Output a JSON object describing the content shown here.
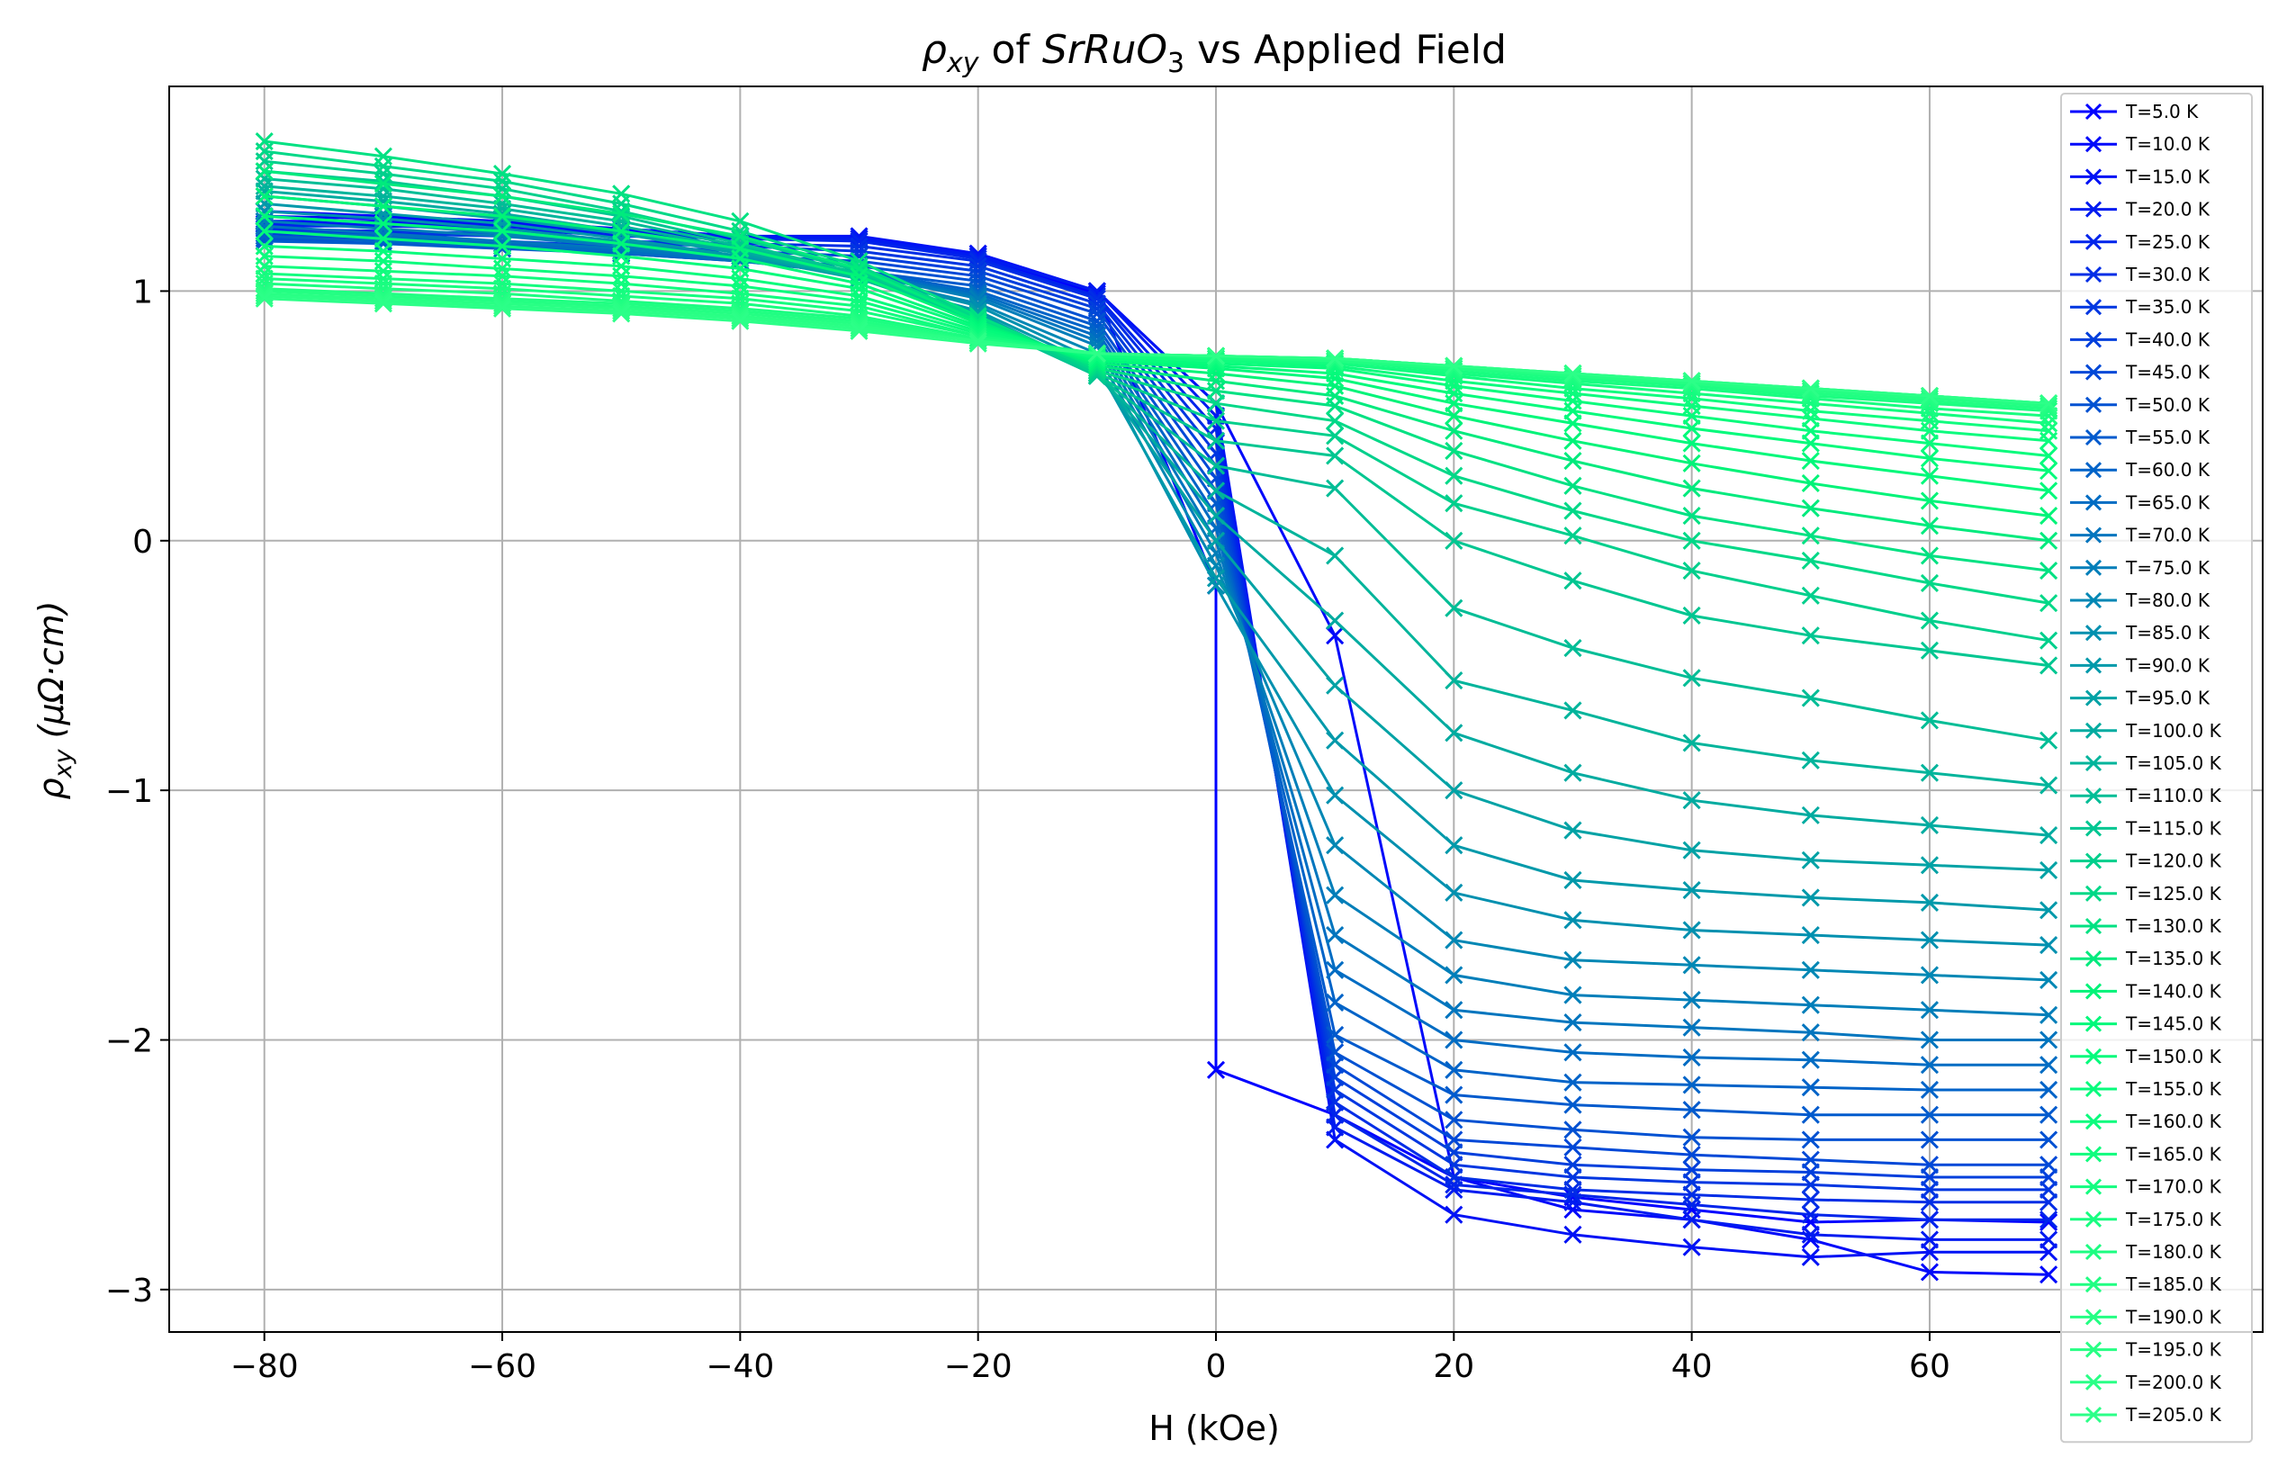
{
  "chart_data": {
    "type": "line",
    "title_parts": {
      "rho": "ρ",
      "rho_sub": "xy",
      "mid": " of ",
      "compound": "SrRuO",
      "compound_sub": "3",
      "tail": " vs Applied Field"
    },
    "xlabel": "H (kOe)",
    "ylabel_parts": {
      "rho": "ρ",
      "rho_sub": "xy",
      "units": " (μΩ·cm)"
    },
    "xlim": [
      -88,
      88
    ],
    "ylim": [
      -3.17,
      1.82
    ],
    "xticks": [
      -80,
      -60,
      -40,
      -20,
      0,
      20,
      40,
      60
    ],
    "yticks": [
      -3,
      -2,
      -1,
      0,
      1
    ],
    "grid": true,
    "legend_position": "right",
    "marker": "x",
    "x": [
      -80,
      -70,
      -60,
      -50,
      -40,
      -30,
      -20,
      -10,
      0,
      10,
      20,
      30,
      40,
      50,
      60,
      70
    ],
    "series": [
      {
        "name": "T=5.0 K",
        "color": "#0000ff",
        "values": [
          1.32,
          1.3,
          1.28,
          1.25,
          1.22,
          1.2,
          1.14,
          0.99,
          -2.12,
          -2.3,
          -2.55,
          -2.63,
          -2.68,
          -2.73,
          -2.72,
          -2.73
        ],
        "extra": [
          0,
          -0.18
        ]
      },
      {
        "name": "T=10.0 K",
        "color": "#0009fa",
        "values": [
          1.3,
          1.29,
          1.27,
          1.25,
          1.22,
          1.21,
          1.15,
          1.0,
          0.55,
          -0.38,
          -2.55,
          -2.68,
          -2.72,
          -2.8,
          -2.93,
          -2.94
        ]
      },
      {
        "name": "T=15.0 K",
        "color": "#0012f5",
        "values": [
          1.28,
          1.28,
          1.27,
          1.24,
          1.22,
          1.22,
          1.15,
          1.0,
          0.55,
          -2.4,
          -2.7,
          -2.78,
          -2.83,
          -2.87,
          -2.85,
          -2.85
        ]
      },
      {
        "name": "T=20.0 K",
        "color": "#001bf0",
        "values": [
          1.27,
          1.27,
          1.26,
          1.23,
          1.22,
          1.21,
          1.14,
          1.0,
          0.5,
          -2.35,
          -2.6,
          -2.65,
          -2.72,
          -2.78,
          -2.8,
          -2.8
        ]
      },
      {
        "name": "T=25.0 K",
        "color": "#0024eb",
        "values": [
          1.26,
          1.26,
          1.25,
          1.22,
          1.21,
          1.2,
          1.13,
          0.98,
          0.45,
          -2.3,
          -2.58,
          -2.62,
          -2.66,
          -2.7,
          -2.72,
          -2.72
        ]
      },
      {
        "name": "T=30.0 K",
        "color": "#002de6",
        "values": [
          1.25,
          1.24,
          1.23,
          1.2,
          1.19,
          1.18,
          1.12,
          0.97,
          0.4,
          -2.25,
          -2.55,
          -2.6,
          -2.62,
          -2.64,
          -2.65,
          -2.65
        ]
      },
      {
        "name": "T=35.0 K",
        "color": "#0036e1",
        "values": [
          1.24,
          1.23,
          1.22,
          1.19,
          1.18,
          1.16,
          1.1,
          0.95,
          0.35,
          -2.2,
          -2.5,
          -2.55,
          -2.57,
          -2.58,
          -2.6,
          -2.6
        ]
      },
      {
        "name": "T=40.0 K",
        "color": "#003fdc",
        "values": [
          1.23,
          1.22,
          1.2,
          1.18,
          1.16,
          1.14,
          1.08,
          0.93,
          0.3,
          -2.15,
          -2.45,
          -2.5,
          -2.52,
          -2.53,
          -2.55,
          -2.55
        ]
      },
      {
        "name": "T=45.0 K",
        "color": "#0048d7",
        "values": [
          1.22,
          1.21,
          1.19,
          1.17,
          1.14,
          1.12,
          1.06,
          0.91,
          0.25,
          -2.1,
          -2.4,
          -2.43,
          -2.46,
          -2.48,
          -2.5,
          -2.5
        ]
      },
      {
        "name": "T=50.0 K",
        "color": "#0051d2",
        "values": [
          1.21,
          1.2,
          1.18,
          1.16,
          1.13,
          1.1,
          1.04,
          0.88,
          0.2,
          -2.05,
          -2.32,
          -2.36,
          -2.39,
          -2.4,
          -2.4,
          -2.4
        ]
      },
      {
        "name": "T=55.0 K",
        "color": "#005acd",
        "values": [
          1.2,
          1.19,
          1.17,
          1.15,
          1.12,
          1.08,
          1.02,
          0.86,
          0.15,
          -1.98,
          -2.22,
          -2.26,
          -2.28,
          -2.3,
          -2.3,
          -2.3
        ]
      },
      {
        "name": "T=60.0 K",
        "color": "#0063c8",
        "values": [
          1.22,
          1.2,
          1.18,
          1.15,
          1.12,
          1.08,
          1.0,
          0.84,
          0.1,
          -1.85,
          -2.12,
          -2.17,
          -2.18,
          -2.19,
          -2.2,
          -2.2
        ]
      },
      {
        "name": "T=65.0 K",
        "color": "#006cc3",
        "values": [
          1.24,
          1.22,
          1.19,
          1.16,
          1.12,
          1.07,
          0.99,
          0.82,
          0.05,
          -1.72,
          -2.0,
          -2.05,
          -2.07,
          -2.08,
          -2.1,
          -2.1
        ]
      },
      {
        "name": "T=70.0 K",
        "color": "#0075be",
        "values": [
          1.26,
          1.23,
          1.2,
          1.17,
          1.12,
          1.07,
          0.98,
          0.8,
          0.0,
          -1.58,
          -1.88,
          -1.93,
          -1.95,
          -1.97,
          -2.0,
          -2.0
        ]
      },
      {
        "name": "T=75.0 K",
        "color": "#007eb9",
        "values": [
          1.28,
          1.25,
          1.22,
          1.18,
          1.13,
          1.07,
          0.97,
          0.78,
          -0.05,
          -1.42,
          -1.74,
          -1.82,
          -1.84,
          -1.86,
          -1.88,
          -1.9
        ]
      },
      {
        "name": "T=80.0 K",
        "color": "#0087b4",
        "values": [
          1.3,
          1.27,
          1.23,
          1.19,
          1.13,
          1.06,
          0.95,
          0.75,
          -0.1,
          -1.22,
          -1.6,
          -1.68,
          -1.7,
          -1.72,
          -1.74,
          -1.76
        ]
      },
      {
        "name": "T=85.0 K",
        "color": "#0090af",
        "values": [
          1.32,
          1.29,
          1.25,
          1.2,
          1.14,
          1.06,
          0.94,
          0.72,
          -0.18,
          -1.02,
          -1.41,
          -1.52,
          -1.56,
          -1.58,
          -1.6,
          -1.62
        ]
      },
      {
        "name": "T=90.0 K",
        "color": "#0099aa",
        "values": [
          1.35,
          1.31,
          1.27,
          1.21,
          1.14,
          1.05,
          0.92,
          0.7,
          -0.15,
          -0.8,
          -1.22,
          -1.36,
          -1.4,
          -1.43,
          -1.45,
          -1.48
        ]
      },
      {
        "name": "T=95.0 K",
        "color": "#00a2a5",
        "values": [
          1.38,
          1.34,
          1.29,
          1.23,
          1.15,
          1.05,
          0.91,
          0.68,
          0.0,
          -0.58,
          -1.0,
          -1.16,
          -1.24,
          -1.28,
          -1.3,
          -1.32
        ]
      },
      {
        "name": "T=100.0 K",
        "color": "#00aba0",
        "values": [
          1.4,
          1.36,
          1.31,
          1.24,
          1.16,
          1.05,
          0.9,
          0.67,
          0.1,
          -0.32,
          -0.77,
          -0.93,
          -1.04,
          -1.1,
          -1.14,
          -1.18
        ]
      },
      {
        "name": "T=105.0 K",
        "color": "#00b49b",
        "values": [
          1.42,
          1.38,
          1.33,
          1.26,
          1.17,
          1.05,
          0.89,
          0.66,
          0.2,
          -0.06,
          -0.56,
          -0.68,
          -0.81,
          -0.88,
          -0.93,
          -0.98
        ]
      },
      {
        "name": "T=110.0 K",
        "color": "#00bd96",
        "values": [
          1.45,
          1.41,
          1.35,
          1.28,
          1.18,
          1.06,
          0.88,
          0.66,
          0.3,
          0.21,
          -0.27,
          -0.43,
          -0.55,
          -0.63,
          -0.72,
          -0.8
        ]
      },
      {
        "name": "T=115.0 K",
        "color": "#00c691",
        "values": [
          1.48,
          1.44,
          1.38,
          1.3,
          1.19,
          1.07,
          0.88,
          0.66,
          0.4,
          0.34,
          0.0,
          -0.16,
          -0.3,
          -0.38,
          -0.44,
          -0.5
        ]
      },
      {
        "name": "T=120.0 K",
        "color": "#00cf8c",
        "values": [
          1.52,
          1.47,
          1.41,
          1.32,
          1.21,
          1.08,
          0.88,
          0.67,
          0.48,
          0.42,
          0.15,
          0.02,
          -0.12,
          -0.22,
          -0.32,
          -0.4
        ]
      },
      {
        "name": "T=125.0 K",
        "color": "#00d887",
        "values": [
          1.56,
          1.5,
          1.44,
          1.35,
          1.24,
          1.1,
          0.89,
          0.68,
          0.55,
          0.48,
          0.26,
          0.12,
          0.0,
          -0.08,
          -0.17,
          -0.25
        ]
      },
      {
        "name": "T=130.0 K",
        "color": "#00e182",
        "values": [
          1.6,
          1.54,
          1.47,
          1.39,
          1.28,
          1.12,
          0.9,
          0.69,
          0.6,
          0.54,
          0.36,
          0.22,
          0.1,
          0.02,
          -0.06,
          -0.12
        ]
      },
      {
        "name": "T=135.0 K",
        "color": "#00ea7d",
        "values": [
          1.48,
          1.43,
          1.38,
          1.31,
          1.22,
          1.09,
          0.88,
          0.7,
          0.64,
          0.58,
          0.44,
          0.32,
          0.21,
          0.13,
          0.06,
          0.0
        ]
      },
      {
        "name": "T=140.0 K",
        "color": "#00f378",
        "values": [
          1.38,
          1.34,
          1.3,
          1.24,
          1.17,
          1.06,
          0.87,
          0.71,
          0.67,
          0.62,
          0.5,
          0.4,
          0.31,
          0.23,
          0.16,
          0.1
        ]
      },
      {
        "name": "T=145.0 K",
        "color": "#00f87a",
        "values": [
          1.3,
          1.27,
          1.24,
          1.19,
          1.13,
          1.03,
          0.86,
          0.72,
          0.69,
          0.65,
          0.55,
          0.47,
          0.39,
          0.32,
          0.26,
          0.2
        ]
      },
      {
        "name": "T=150.0 K",
        "color": "#04fa7b",
        "values": [
          1.24,
          1.21,
          1.18,
          1.14,
          1.09,
          1.01,
          0.85,
          0.73,
          0.7,
          0.67,
          0.59,
          0.52,
          0.45,
          0.39,
          0.33,
          0.28
        ]
      },
      {
        "name": "T=155.0 K",
        "color": "#08fb7c",
        "values": [
          1.18,
          1.16,
          1.13,
          1.1,
          1.05,
          0.98,
          0.84,
          0.73,
          0.71,
          0.69,
          0.62,
          0.56,
          0.5,
          0.44,
          0.39,
          0.34
        ]
      },
      {
        "name": "T=160.0 K",
        "color": "#0cfb7d",
        "values": [
          1.14,
          1.12,
          1.09,
          1.06,
          1.02,
          0.96,
          0.83,
          0.74,
          0.72,
          0.7,
          0.64,
          0.59,
          0.54,
          0.49,
          0.44,
          0.4
        ]
      },
      {
        "name": "T=165.0 K",
        "color": "#10fc7e",
        "values": [
          1.1,
          1.08,
          1.06,
          1.03,
          0.99,
          0.94,
          0.82,
          0.74,
          0.72,
          0.71,
          0.66,
          0.61,
          0.57,
          0.52,
          0.48,
          0.44
        ]
      },
      {
        "name": "T=170.0 K",
        "color": "#14fc7f",
        "values": [
          1.07,
          1.05,
          1.03,
          1.0,
          0.97,
          0.92,
          0.82,
          0.75,
          0.73,
          0.71,
          0.67,
          0.63,
          0.59,
          0.55,
          0.51,
          0.47
        ]
      },
      {
        "name": "T=175.0 K",
        "color": "#18fd80",
        "values": [
          1.05,
          1.03,
          1.01,
          0.98,
          0.95,
          0.9,
          0.81,
          0.75,
          0.73,
          0.72,
          0.68,
          0.64,
          0.61,
          0.57,
          0.53,
          0.5
        ]
      },
      {
        "name": "T=180.0 K",
        "color": "#1cfd81",
        "values": [
          1.03,
          1.01,
          0.99,
          0.96,
          0.93,
          0.89,
          0.81,
          0.75,
          0.74,
          0.72,
          0.69,
          0.65,
          0.62,
          0.58,
          0.55,
          0.52
        ]
      },
      {
        "name": "T=185.0 K",
        "color": "#20fe82",
        "values": [
          1.01,
          0.99,
          0.97,
          0.95,
          0.92,
          0.88,
          0.8,
          0.75,
          0.74,
          0.72,
          0.69,
          0.66,
          0.63,
          0.59,
          0.56,
          0.53
        ]
      },
      {
        "name": "T=190.0 K",
        "color": "#24fe83",
        "values": [
          1.0,
          0.98,
          0.96,
          0.94,
          0.91,
          0.87,
          0.8,
          0.75,
          0.74,
          0.73,
          0.7,
          0.66,
          0.63,
          0.6,
          0.57,
          0.54
        ]
      },
      {
        "name": "T=195.0 K",
        "color": "#28ff84",
        "values": [
          0.99,
          0.97,
          0.95,
          0.93,
          0.9,
          0.86,
          0.8,
          0.75,
          0.74,
          0.73,
          0.7,
          0.67,
          0.64,
          0.61,
          0.58,
          0.55
        ]
      },
      {
        "name": "T=200.0 K",
        "color": "#2aff86",
        "values": [
          0.98,
          0.96,
          0.94,
          0.92,
          0.89,
          0.85,
          0.8,
          0.75,
          0.74,
          0.73,
          0.7,
          0.67,
          0.64,
          0.61,
          0.58,
          0.55
        ]
      },
      {
        "name": "T=205.0 K",
        "color": "#2cff88",
        "values": [
          0.97,
          0.95,
          0.93,
          0.91,
          0.88,
          0.84,
          0.79,
          0.75,
          0.74,
          0.73,
          0.7,
          0.67,
          0.64,
          0.61,
          0.58,
          0.55
        ]
      }
    ]
  }
}
